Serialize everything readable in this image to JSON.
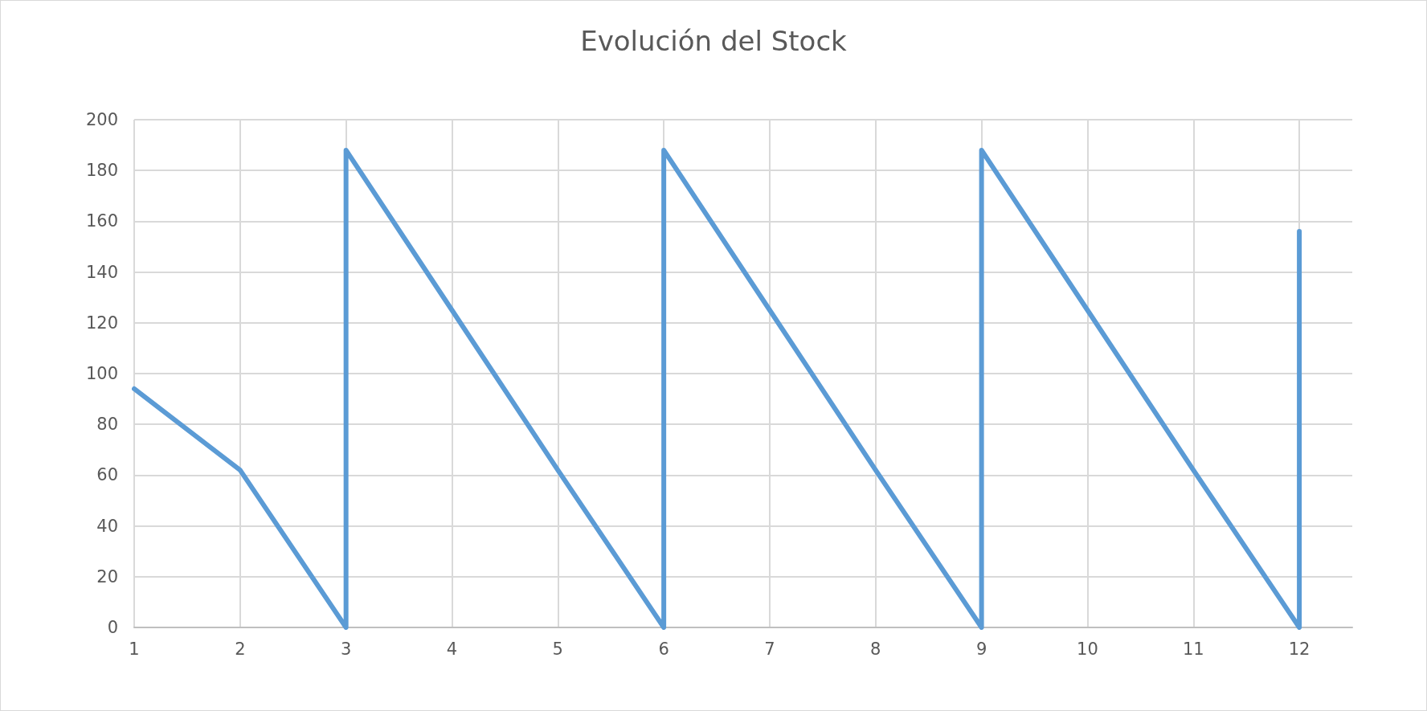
{
  "chart_data": {
    "type": "line",
    "title": "Evolución del Stock",
    "series": [
      {
        "color": "#5b9bd5",
        "x": [
          1,
          2,
          3,
          3,
          4,
          5,
          6,
          6,
          7,
          8,
          9,
          9,
          10,
          11,
          12,
          12
        ],
        "values": [
          94,
          62,
          0,
          188,
          125,
          62,
          0,
          188,
          125,
          62,
          0,
          188,
          125,
          62,
          0,
          156
        ]
      }
    ],
    "xlim": [
      1,
      12.5
    ],
    "xticks": [
      1,
      2,
      3,
      4,
      5,
      6,
      7,
      8,
      9,
      10,
      11,
      12
    ],
    "ylim": [
      0,
      200
    ],
    "yticks": [
      0,
      20,
      40,
      60,
      80,
      100,
      120,
      140,
      160,
      180,
      200
    ],
    "grid": true,
    "marker": "none",
    "line_style": "solid"
  }
}
